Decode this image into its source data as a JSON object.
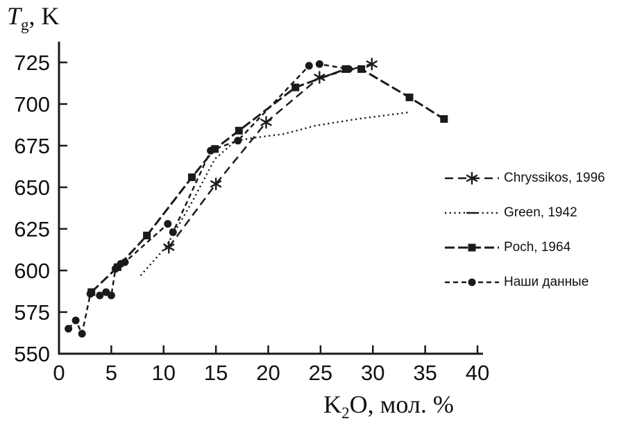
{
  "axis": {
    "y_title_main": "T",
    "y_title_sub": "g",
    "y_title_rest": ", K",
    "x_title_pre": "K",
    "x_title_sub": "2",
    "x_title_post": "O, мол. %"
  },
  "chart_data": {
    "type": "line",
    "title": "",
    "xlabel": "K2O, мол. %",
    "ylabel": "Tg, K",
    "xlim": [
      0,
      40
    ],
    "ylim": [
      550,
      737.5
    ],
    "xticks": [
      0,
      5,
      10,
      15,
      20,
      25,
      30,
      35,
      40
    ],
    "yticks": [
      550,
      575,
      600,
      625,
      650,
      675,
      700,
      725
    ],
    "grid": false,
    "legend_position": "right",
    "line_color": "#1a1a1a",
    "series": [
      {
        "name": "Chryssikos, 1996",
        "marker": "asterisk",
        "dash": "12,7",
        "width": 2.5,
        "points": [
          [
            10.5,
            614
          ],
          [
            15,
            652
          ],
          [
            19.8,
            689
          ],
          [
            24.9,
            716
          ],
          [
            29.9,
            724
          ]
        ]
      },
      {
        "name": "Green, 1942",
        "marker": "none",
        "legend_marker": "dash",
        "dash": "2.2,4.5",
        "width": 2.4,
        "points": [
          [
            7.8,
            597
          ],
          [
            10.2,
            614
          ],
          [
            12.7,
            641
          ],
          [
            14.9,
            667
          ],
          [
            16.9,
            678
          ],
          [
            19,
            680
          ],
          [
            21.5,
            682
          ],
          [
            24.5,
            687
          ],
          [
            28.5,
            691
          ],
          [
            33.4,
            695
          ]
        ]
      },
      {
        "name": "Poch, 1964",
        "marker": "square",
        "dash": "14,5",
        "width": 3,
        "points": [
          [
            3.1,
            587
          ],
          [
            5.6,
            602
          ],
          [
            8.4,
            621
          ],
          [
            12.7,
            656
          ],
          [
            14.9,
            673
          ],
          [
            17.2,
            684
          ],
          [
            22.6,
            710
          ],
          [
            27.4,
            721
          ],
          [
            28.9,
            721
          ],
          [
            33.5,
            704
          ],
          [
            36.8,
            691
          ]
        ]
      },
      {
        "name": "Наши данные",
        "marker": "circle",
        "dash": "7,5",
        "width": 2.5,
        "points": [
          [
            0.9,
            565
          ],
          [
            1.6,
            570
          ],
          [
            2.2,
            562
          ],
          [
            3.0,
            586
          ],
          [
            3.9,
            585
          ],
          [
            4.5,
            587
          ],
          [
            5.0,
            585
          ],
          [
            5.4,
            601
          ],
          [
            5.9,
            604
          ],
          [
            6.3,
            605
          ],
          [
            10.4,
            628
          ],
          [
            10.9,
            623
          ],
          [
            14.5,
            672
          ],
          [
            14.9,
            673
          ],
          [
            17.1,
            678
          ],
          [
            23.9,
            723
          ],
          [
            24.9,
            724
          ],
          [
            27.7,
            721
          ]
        ]
      }
    ]
  }
}
